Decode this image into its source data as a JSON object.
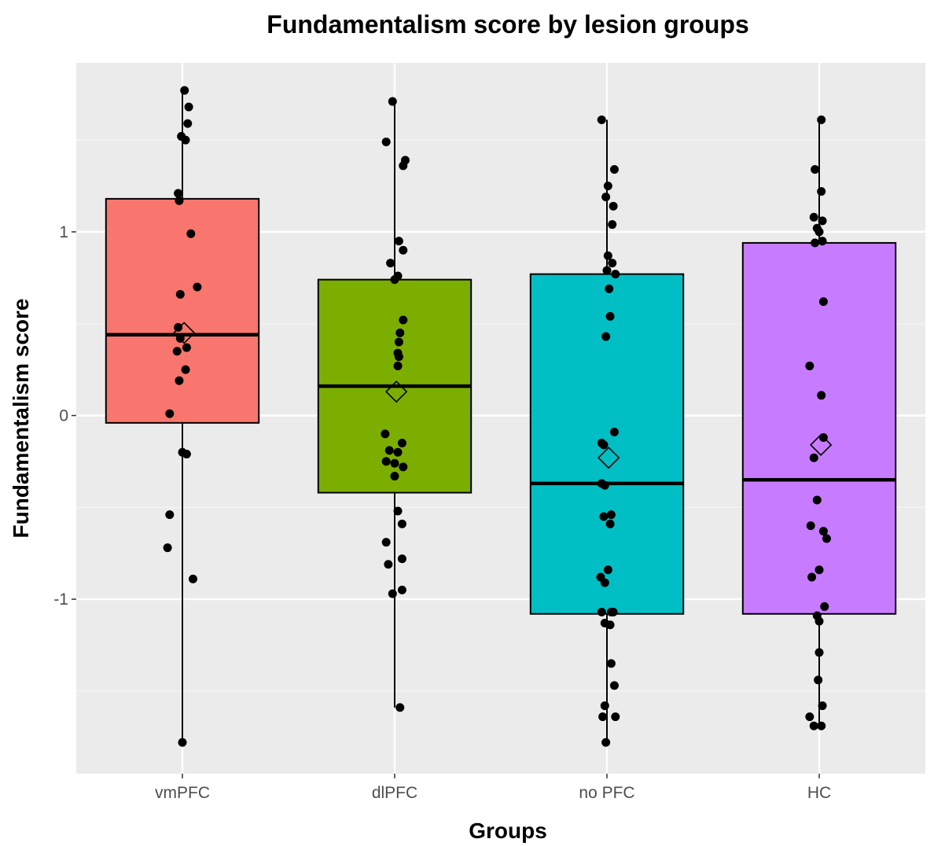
{
  "chart_data": {
    "type": "box",
    "title": "Fundamentalism score by lesion groups",
    "xlabel": "Groups",
    "ylabel": "Fundamentalism score",
    "ylim": [
      -1.95,
      1.92
    ],
    "yticks": [
      -1,
      0,
      1
    ],
    "grid": true,
    "legend": "none",
    "groups": [
      {
        "name": "vmPFC",
        "color": "#F8766D",
        "whisker_low": -1.78,
        "q1": -0.04,
        "median": 0.44,
        "q3": 1.18,
        "whisker_high": 1.77,
        "mean": 0.45,
        "points": [
          {
            "x": 0.02,
            "y": 1.77
          },
          {
            "x": 0.06,
            "y": 1.68
          },
          {
            "x": 0.05,
            "y": 1.59
          },
          {
            "x": -0.01,
            "y": 1.52
          },
          {
            "x": 0.03,
            "y": 1.5
          },
          {
            "x": -0.04,
            "y": 1.21
          },
          {
            "x": -0.03,
            "y": 1.17
          },
          {
            "x": 0.08,
            "y": 0.99
          },
          {
            "x": 0.14,
            "y": 0.7
          },
          {
            "x": -0.02,
            "y": 0.66
          },
          {
            "x": -0.04,
            "y": 0.48
          },
          {
            "x": -0.02,
            "y": 0.42
          },
          {
            "x": 0.04,
            "y": 0.37
          },
          {
            "x": -0.05,
            "y": 0.35
          },
          {
            "x": 0.03,
            "y": 0.25
          },
          {
            "x": -0.03,
            "y": 0.19
          },
          {
            "x": -0.12,
            "y": 0.01
          },
          {
            "x": 0.0,
            "y": -0.2
          },
          {
            "x": 0.04,
            "y": -0.21
          },
          {
            "x": -0.12,
            "y": -0.54
          },
          {
            "x": -0.14,
            "y": -0.72
          },
          {
            "x": 0.1,
            "y": -0.89
          },
          {
            "x": 0.0,
            "y": -1.78
          }
        ]
      },
      {
        "name": "dlPFC",
        "color": "#7CAE00",
        "whisker_low": -1.59,
        "q1": -0.42,
        "median": 0.16,
        "q3": 0.74,
        "whisker_high": 1.71,
        "mean": 0.13,
        "points": [
          {
            "x": -0.02,
            "y": 1.71
          },
          {
            "x": -0.08,
            "y": 1.49
          },
          {
            "x": 0.1,
            "y": 1.39
          },
          {
            "x": 0.08,
            "y": 1.36
          },
          {
            "x": 0.04,
            "y": 0.95
          },
          {
            "x": 0.08,
            "y": 0.9
          },
          {
            "x": -0.04,
            "y": 0.83
          },
          {
            "x": 0.03,
            "y": 0.76
          },
          {
            "x": 0.0,
            "y": 0.74
          },
          {
            "x": 0.08,
            "y": 0.52
          },
          {
            "x": 0.05,
            "y": 0.45
          },
          {
            "x": 0.04,
            "y": 0.4
          },
          {
            "x": 0.03,
            "y": 0.34
          },
          {
            "x": 0.04,
            "y": 0.32
          },
          {
            "x": 0.03,
            "y": 0.27
          },
          {
            "x": -0.09,
            "y": -0.1
          },
          {
            "x": 0.07,
            "y": -0.15
          },
          {
            "x": -0.05,
            "y": -0.19
          },
          {
            "x": 0.03,
            "y": -0.2
          },
          {
            "x": -0.08,
            "y": -0.25
          },
          {
            "x": 0.0,
            "y": -0.26
          },
          {
            "x": 0.08,
            "y": -0.28
          },
          {
            "x": 0.0,
            "y": -0.33
          },
          {
            "x": 0.03,
            "y": -0.52
          },
          {
            "x": 0.07,
            "y": -0.59
          },
          {
            "x": -0.08,
            "y": -0.69
          },
          {
            "x": 0.07,
            "y": -0.78
          },
          {
            "x": -0.06,
            "y": -0.81
          },
          {
            "x": 0.07,
            "y": -0.95
          },
          {
            "x": -0.02,
            "y": -0.97
          },
          {
            "x": 0.05,
            "y": -1.59
          }
        ]
      },
      {
        "name": "no PFC",
        "color": "#00BFC4",
        "whisker_low": -1.78,
        "q1": -1.08,
        "median": -0.37,
        "q3": 0.77,
        "whisker_high": 1.61,
        "mean": -0.23,
        "points": [
          {
            "x": -0.05,
            "y": 1.61
          },
          {
            "x": 0.07,
            "y": 1.34
          },
          {
            "x": 0.01,
            "y": 1.25
          },
          {
            "x": -0.01,
            "y": 1.19
          },
          {
            "x": 0.06,
            "y": 1.14
          },
          {
            "x": 0.05,
            "y": 1.04
          },
          {
            "x": 0.01,
            "y": 0.87
          },
          {
            "x": 0.05,
            "y": 0.83
          },
          {
            "x": 0.0,
            "y": 0.79
          },
          {
            "x": 0.08,
            "y": 0.77
          },
          {
            "x": 0.02,
            "y": 0.69
          },
          {
            "x": 0.03,
            "y": 0.54
          },
          {
            "x": -0.01,
            "y": 0.43
          },
          {
            "x": 0.07,
            "y": -0.09
          },
          {
            "x": -0.05,
            "y": -0.15
          },
          {
            "x": -0.03,
            "y": -0.16
          },
          {
            "x": -0.05,
            "y": -0.37
          },
          {
            "x": -0.02,
            "y": -0.38
          },
          {
            "x": 0.04,
            "y": -0.54
          },
          {
            "x": -0.03,
            "y": -0.55
          },
          {
            "x": 0.03,
            "y": -0.59
          },
          {
            "x": 0.01,
            "y": -0.84
          },
          {
            "x": -0.06,
            "y": -0.88
          },
          {
            "x": -0.02,
            "y": -0.91
          },
          {
            "x": -0.05,
            "y": -1.07
          },
          {
            "x": 0.04,
            "y": -1.07
          },
          {
            "x": 0.06,
            "y": -1.07
          },
          {
            "x": -0.02,
            "y": -1.13
          },
          {
            "x": 0.03,
            "y": -1.14
          },
          {
            "x": 0.04,
            "y": -1.35
          },
          {
            "x": 0.07,
            "y": -1.47
          },
          {
            "x": -0.02,
            "y": -1.58
          },
          {
            "x": -0.04,
            "y": -1.64
          },
          {
            "x": 0.08,
            "y": -1.64
          },
          {
            "x": -0.01,
            "y": -1.78
          }
        ]
      },
      {
        "name": "HC",
        "color": "#C77CFF",
        "whisker_low": -1.69,
        "q1": -1.08,
        "median": -0.35,
        "q3": 0.94,
        "whisker_high": 1.61,
        "mean": -0.16,
        "points": [
          {
            "x": 0.02,
            "y": 1.61
          },
          {
            "x": -0.04,
            "y": 1.34
          },
          {
            "x": 0.02,
            "y": 1.22
          },
          {
            "x": -0.05,
            "y": 1.08
          },
          {
            "x": 0.03,
            "y": 1.06
          },
          {
            "x": -0.02,
            "y": 1.02
          },
          {
            "x": 0.0,
            "y": 1.0
          },
          {
            "x": -0.04,
            "y": 0.94
          },
          {
            "x": 0.03,
            "y": 0.95
          },
          {
            "x": 0.04,
            "y": 0.62
          },
          {
            "x": -0.09,
            "y": 0.27
          },
          {
            "x": 0.02,
            "y": 0.11
          },
          {
            "x": 0.04,
            "y": -0.12
          },
          {
            "x": -0.05,
            "y": -0.23
          },
          {
            "x": -0.02,
            "y": -0.46
          },
          {
            "x": -0.08,
            "y": -0.6
          },
          {
            "x": 0.04,
            "y": -0.63
          },
          {
            "x": 0.07,
            "y": -0.67
          },
          {
            "x": 0.0,
            "y": -0.84
          },
          {
            "x": -0.07,
            "y": -0.88
          },
          {
            "x": 0.05,
            "y": -1.04
          },
          {
            "x": -0.02,
            "y": -1.09
          },
          {
            "x": 0.0,
            "y": -1.12
          },
          {
            "x": 0.0,
            "y": -1.29
          },
          {
            "x": -0.01,
            "y": -1.44
          },
          {
            "x": 0.03,
            "y": -1.58
          },
          {
            "x": -0.09,
            "y": -1.64
          },
          {
            "x": -0.05,
            "y": -1.69
          },
          {
            "x": 0.02,
            "y": -1.69
          }
        ]
      }
    ]
  }
}
